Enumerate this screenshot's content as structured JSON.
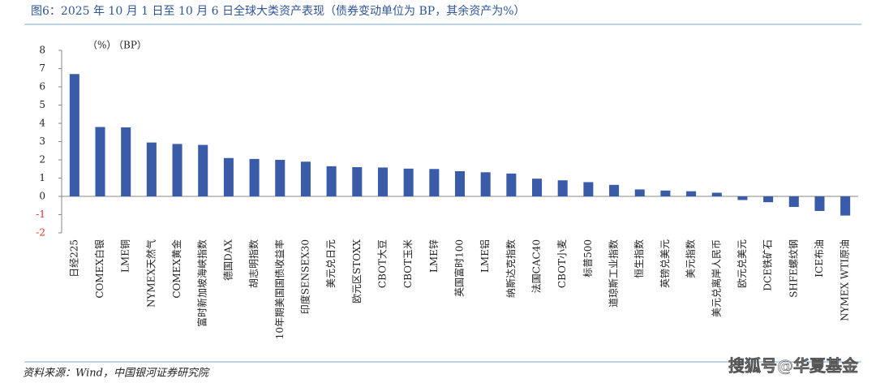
{
  "chart_data": {
    "type": "bar",
    "title": "图6：2025 年 10 月 1 日至 10 月 6 日全球大类资产表现（债券变动单位为 BP，其余资产为%）",
    "unit_labels": [
      "（%）",
      "（BP）"
    ],
    "source": "资料来源：Wind，中国银河证券研究院",
    "watermark": "搜狐号@华夏基金",
    "categories": [
      "日经225",
      "COMEX白银",
      "LME铜",
      "NYMEX天然气",
      "COMEX黄金",
      "富时新加坡海峡指数",
      "德国DAX",
      "胡志明指数",
      "10年期美国国债收益率",
      "印度SENSEX30",
      "美元兑日元",
      "欧元区STOXX",
      "CBOT大豆",
      "CBOT玉米",
      "LME锌",
      "英国富时100",
      "LME铝",
      "纳斯达克指数",
      "法国CAC40",
      "CBOT小麦",
      "标普500",
      "道琼斯工业指数",
      "恒生指数",
      "英镑兑美元",
      "美元指数",
      "美元兑离岸人民币",
      "欧元兑美元",
      "DCE铁矿石",
      "SHFE螺纹钢",
      "ICE布油",
      "NYMEX WTI原油"
    ],
    "values": [
      6.7,
      3.8,
      3.78,
      2.95,
      2.87,
      2.82,
      2.1,
      2.05,
      2.0,
      1.9,
      1.65,
      1.6,
      1.58,
      1.52,
      1.5,
      1.38,
      1.32,
      1.25,
      0.97,
      0.88,
      0.78,
      0.63,
      0.38,
      0.32,
      0.28,
      0.2,
      -0.2,
      -0.32,
      -0.58,
      -0.8,
      -1.05
    ],
    "color": "#3a5ba8",
    "negative_tick_color": "#e0322a",
    "ylim": [
      -2,
      8
    ],
    "yticks": [
      -2,
      -1,
      0,
      1,
      2,
      3,
      4,
      5,
      6,
      7,
      8
    ],
    "grid": false
  }
}
